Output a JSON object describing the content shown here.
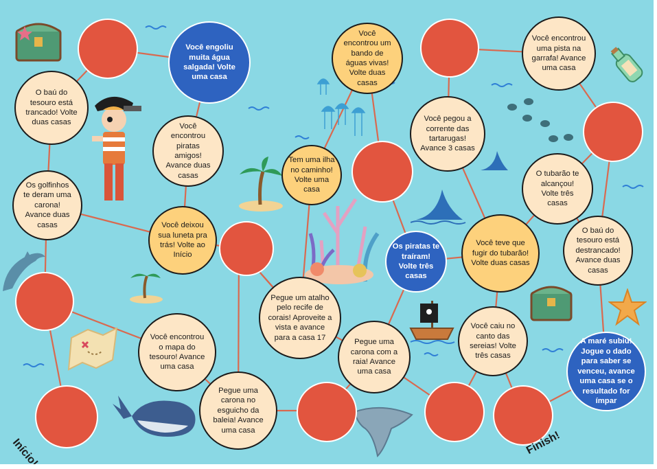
{
  "board": {
    "start_label": "Início!",
    "finish_label": "Finish!",
    "spaces": [
      {
        "text": ""
      },
      {
        "text": ""
      },
      {
        "text": "Você encontrou o mapa do tesouro! Avance uma casa"
      },
      {
        "text": "Pegue uma carona no esguicho da baleia! Avance uma casa"
      },
      {
        "text": ""
      },
      {
        "text": "Pegue uma carona com a raia! Avance uma casa"
      },
      {
        "text": ""
      },
      {
        "text": "Você caiu no canto das sereias! Volte três casas"
      },
      {
        "text": ""
      },
      {
        "text": "A maré subiu! Jogue o dado para saber se venceu, avance uma casa se o resultado for ímpar"
      },
      {
        "text": "O baú do tesouro está destrancado! Avance duas casas"
      },
      {
        "text": "O tubarão te alcançou! Volte três casas"
      },
      {
        "text": ""
      },
      {
        "text": "Você encontrou uma pista na garrafa! Avance uma casa"
      },
      {
        "text": ""
      },
      {
        "text": "Você pegou a corrente das tartarugas! Avance 3 casas"
      },
      {
        "text": "Você teve que fugir do tubarão! Volte duas casas"
      },
      {
        "text": "Os piratas te traíram! Volte três casas"
      },
      {
        "text": ""
      },
      {
        "text": "Você encontrou um bando de águas vivas! Volte duas casas"
      },
      {
        "text": "Tem uma ilha no caminho! Volte uma casa"
      },
      {
        "text": "Pegue um atalho pelo recife de corais! Aproveite a vista e avance para a casa 17"
      },
      {
        "text": ""
      },
      {
        "text": "Você deixou sua luneta pra trás! Volte ao Início"
      },
      {
        "text": "Você encontrou piratas amigos! Avance duas casas"
      },
      {
        "text": "Você engoliu muita água salgada! Volte uma casa"
      },
      {
        "text": ""
      },
      {
        "text": "O baú do tesouro está trancado! Volte duas casas"
      },
      {
        "text": "Os golfinhos te deram uma carona! Avance duas casas"
      }
    ]
  },
  "colors": {
    "sea": "#8ad8e4",
    "red_space": "#e2553f",
    "cream_space": "#fde6c6",
    "orange_space": "#fdd17c",
    "blue_space": "#2e63c0",
    "path": "#d9694f"
  },
  "decorations": [
    "pirate-boy",
    "treasure-chest",
    "message-bottle",
    "sea-turtles",
    "jellyfish",
    "palm-island",
    "shark-fin",
    "coral-reef",
    "dolphin",
    "treasure-map",
    "whale",
    "manta-ray",
    "pirate-ship",
    "starfish"
  ]
}
